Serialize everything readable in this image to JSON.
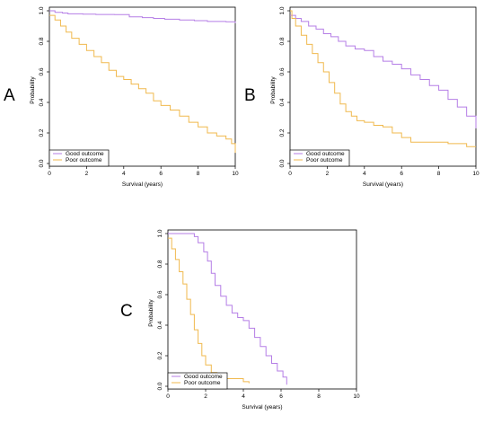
{
  "panels_letters": [
    "A",
    "B",
    "C"
  ],
  "colors": {
    "good": "#b57ee6",
    "poor": "#f0b94e",
    "axis": "#000000"
  },
  "chart_data": [
    {
      "panel": "A",
      "type": "line",
      "step": true,
      "xlabel": "Survival (years)",
      "ylabel": "Probability",
      "xlim": [
        0,
        10
      ],
      "ylim": [
        0,
        1
      ],
      "xticks": [
        "0",
        "2",
        "4",
        "6",
        "8",
        "10"
      ],
      "yticks": [
        "0.0",
        "0.2",
        "0.4",
        "0.6",
        "0.8",
        "1.0"
      ],
      "legend": [
        "Good outcome",
        "Poor outcome"
      ],
      "legend_position": "bottom-left",
      "series": [
        {
          "name": "Good outcome",
          "x": [
            0,
            0.3,
            0.7,
            1.0,
            1.8,
            2.5,
            3.5,
            4.3,
            5.0,
            5.6,
            6.2,
            7.0,
            7.8,
            8.5,
            9.5,
            10
          ],
          "y": [
            1.0,
            0.99,
            0.985,
            0.98,
            0.978,
            0.976,
            0.975,
            0.96,
            0.955,
            0.95,
            0.945,
            0.94,
            0.935,
            0.93,
            0.928,
            0.92
          ]
        },
        {
          "name": "Poor outcome",
          "x": [
            0,
            0.3,
            0.6,
            0.9,
            1.2,
            1.6,
            2.0,
            2.4,
            2.8,
            3.2,
            3.6,
            4.0,
            4.4,
            4.8,
            5.2,
            5.6,
            6.0,
            6.5,
            7.0,
            7.5,
            8.0,
            8.5,
            9.0,
            9.5,
            9.8,
            10
          ],
          "y": [
            0.97,
            0.94,
            0.9,
            0.86,
            0.82,
            0.78,
            0.74,
            0.7,
            0.66,
            0.61,
            0.57,
            0.55,
            0.52,
            0.49,
            0.46,
            0.41,
            0.38,
            0.35,
            0.31,
            0.27,
            0.24,
            0.2,
            0.18,
            0.16,
            0.13,
            0.07
          ]
        }
      ]
    },
    {
      "panel": "B",
      "type": "line",
      "step": true,
      "xlabel": "Survival (years)",
      "ylabel": "Probability",
      "xlim": [
        0,
        10
      ],
      "ylim": [
        0,
        1
      ],
      "xticks": [
        "0",
        "2",
        "4",
        "6",
        "8",
        "10"
      ],
      "yticks": [
        "0.0",
        "0.2",
        "0.4",
        "0.6",
        "0.8",
        "1.0"
      ],
      "legend": [
        "Good outcome",
        "Poor outcome"
      ],
      "legend_position": "bottom-left",
      "series": [
        {
          "name": "Good outcome",
          "x": [
            0,
            0.3,
            0.6,
            1.0,
            1.4,
            1.8,
            2.2,
            2.6,
            3.0,
            3.5,
            4.0,
            4.5,
            5.0,
            5.5,
            6.0,
            6.5,
            7.0,
            7.5,
            8.0,
            8.5,
            9.0,
            9.5,
            10
          ],
          "y": [
            0.97,
            0.95,
            0.93,
            0.9,
            0.88,
            0.85,
            0.83,
            0.8,
            0.77,
            0.75,
            0.74,
            0.7,
            0.67,
            0.65,
            0.62,
            0.58,
            0.55,
            0.51,
            0.48,
            0.42,
            0.37,
            0.31,
            0.23
          ]
        },
        {
          "name": "Poor outcome",
          "x": [
            0,
            0.1,
            0.3,
            0.6,
            0.9,
            1.2,
            1.5,
            1.8,
            2.1,
            2.4,
            2.7,
            3.0,
            3.3,
            3.6,
            4.0,
            4.5,
            5.0,
            5.5,
            6.0,
            6.5,
            7.0,
            8.5,
            9.5,
            10
          ],
          "y": [
            1.0,
            0.95,
            0.9,
            0.84,
            0.78,
            0.72,
            0.66,
            0.6,
            0.53,
            0.46,
            0.39,
            0.34,
            0.31,
            0.28,
            0.27,
            0.25,
            0.24,
            0.2,
            0.17,
            0.14,
            0.14,
            0.13,
            0.11,
            0.11
          ]
        }
      ]
    },
    {
      "panel": "C",
      "type": "line",
      "step": true,
      "xlabel": "Survival (years)",
      "ylabel": "Probability",
      "xlim": [
        0,
        10
      ],
      "ylim": [
        0,
        1
      ],
      "xticks": [
        "0",
        "2",
        "4",
        "6",
        "8",
        "10"
      ],
      "yticks": [
        "0.0",
        "0.2",
        "0.4",
        "0.6",
        "0.8",
        "1.0"
      ],
      "legend": [
        "Good outcome",
        "Poor outcome"
      ],
      "legend_position": "bottom-left",
      "series": [
        {
          "name": "Good outcome",
          "x": [
            0,
            1.4,
            1.6,
            1.9,
            2.1,
            2.3,
            2.5,
            2.8,
            3.1,
            3.4,
            3.7,
            4.0,
            4.3,
            4.6,
            4.9,
            5.2,
            5.5,
            5.8,
            6.1,
            6.3
          ],
          "y": [
            1.0,
            0.98,
            0.94,
            0.88,
            0.82,
            0.74,
            0.66,
            0.59,
            0.53,
            0.48,
            0.45,
            0.43,
            0.38,
            0.32,
            0.26,
            0.2,
            0.15,
            0.1,
            0.06,
            0.01
          ]
        },
        {
          "name": "Poor outcome",
          "x": [
            0,
            0.2,
            0.4,
            0.6,
            0.8,
            1.0,
            1.2,
            1.4,
            1.6,
            1.8,
            2.0,
            2.3,
            2.6,
            3.0,
            4.0,
            4.3
          ],
          "y": [
            0.97,
            0.9,
            0.83,
            0.75,
            0.67,
            0.57,
            0.47,
            0.37,
            0.28,
            0.2,
            0.14,
            0.09,
            0.06,
            0.05,
            0.03,
            0.02
          ]
        }
      ]
    }
  ]
}
